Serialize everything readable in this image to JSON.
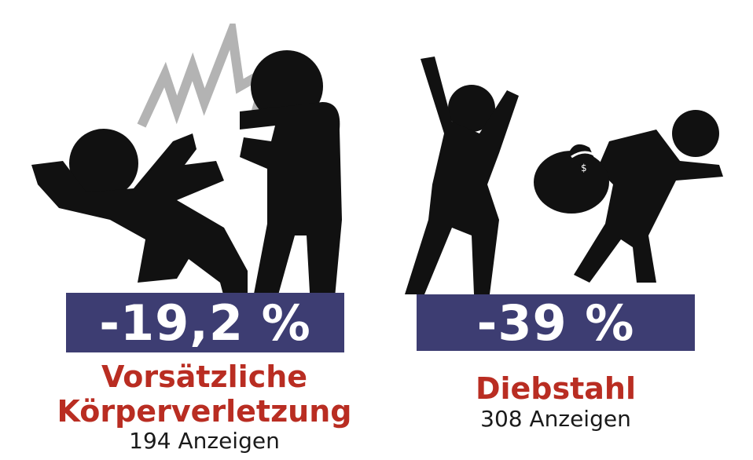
{
  "colors": {
    "silhouette": "#111111",
    "flash": "#b3b3b3",
    "box": "#3d3d72",
    "title": "#b92d22",
    "text": "#1a1a1a"
  },
  "stats": [
    {
      "icon": "assault-icon",
      "percent": "-19,2 %",
      "title_line1": "Vorsätzliche",
      "title_line2": "Körperverletzung",
      "count": "194 Anzeigen"
    },
    {
      "icon": "theft-icon",
      "percent": "-39 %",
      "title_line1": "Diebstahl",
      "count": "308 Anzeigen"
    }
  ]
}
